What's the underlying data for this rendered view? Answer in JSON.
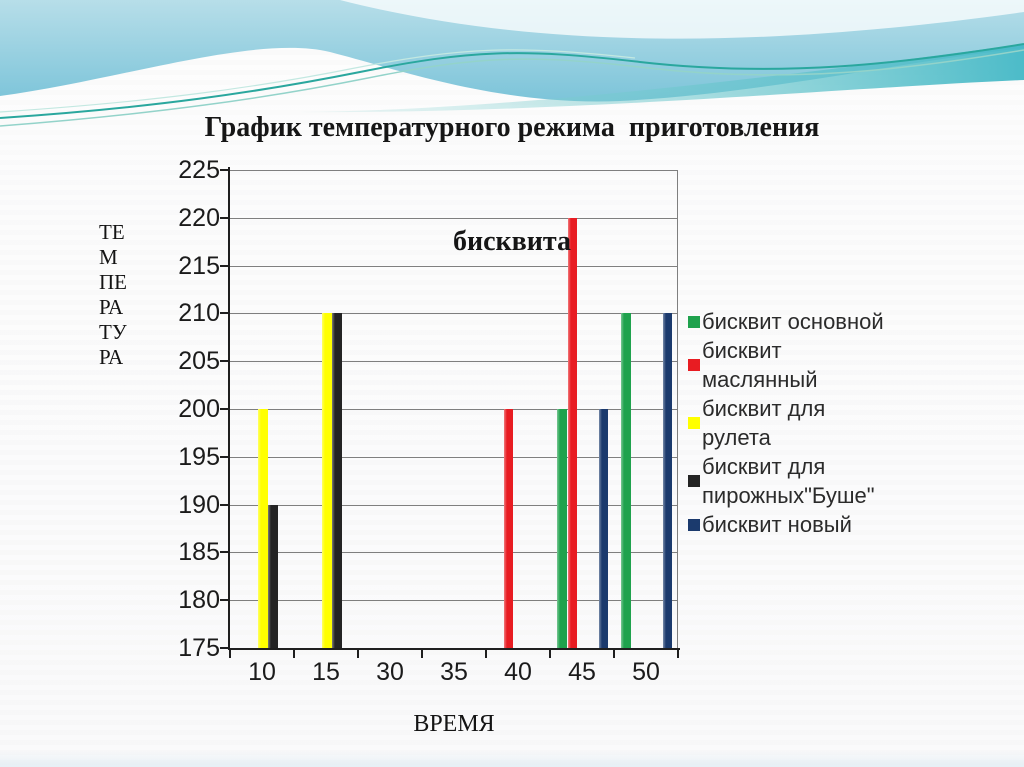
{
  "slide": {
    "title_lines": [
      "График температурного режима  приготовления",
      "бисквита"
    ]
  },
  "chart_data": {
    "type": "bar",
    "title": "График температурного режима  приготовления бисквита",
    "categories": [
      "10",
      "15",
      "30",
      "35",
      "40",
      "45",
      "50"
    ],
    "series": [
      {
        "name": "бисквит основной",
        "color": "#1FA24D",
        "legend_lines": [
          "бисквит основной"
        ],
        "values": [
          null,
          null,
          null,
          null,
          null,
          200,
          210
        ]
      },
      {
        "name": "бисквит маслянный",
        "color": "#E81C22",
        "legend_lines": [
          "бисквит",
          "маслянный"
        ],
        "values": [
          null,
          null,
          null,
          null,
          200,
          220,
          null
        ]
      },
      {
        "name": "бисквит для рулета",
        "color": "#FFFF00",
        "legend_lines": [
          "бисквит для",
          "рулета"
        ],
        "values": [
          200,
          210,
          null,
          null,
          null,
          null,
          null
        ]
      },
      {
        "name": "бисквит для пирожных\"Буше\"",
        "color": "#242424",
        "legend_lines": [
          "бисквит для",
          "пирожных\"Буше\""
        ],
        "values": [
          190,
          210,
          null,
          null,
          null,
          null,
          null
        ]
      },
      {
        "name": "бисквит новый",
        "color": "#1B3A6D",
        "legend_lines": [
          "бисквит новый"
        ],
        "values": [
          null,
          null,
          null,
          null,
          null,
          200,
          210
        ]
      }
    ],
    "xlabel": "ВРЕМЯ",
    "ylabel": "ТЕМПЕРАТУРА",
    "ylabel_lines": [
      "ТЕ",
      "М",
      "ПЕ",
      "РА",
      "ТУ",
      "РА"
    ],
    "ylim": [
      175,
      225
    ],
    "ytick_step": 5,
    "yticks": [
      175,
      180,
      185,
      190,
      195,
      200,
      205,
      210,
      215,
      220,
      225
    ],
    "grid": true,
    "legend_position": "right",
    "colors": {
      "gridline": "#7f7f7f",
      "axis": "#1f1f1f",
      "tick_label": "#1b1b1b",
      "legend_text": "#2b2b2b",
      "title_text": "#161616"
    }
  }
}
